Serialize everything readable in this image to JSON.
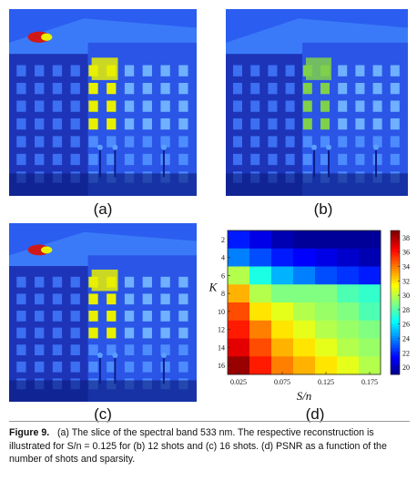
{
  "panels": {
    "a": {
      "label": "(a)"
    },
    "b": {
      "label": "(b)"
    },
    "c": {
      "label": "(c)"
    },
    "d": {
      "label": "(d)"
    }
  },
  "caption": {
    "figure": "Figure 9.",
    "text": "(a) The slice of the spectral band 533 nm. The respective reconstruction is illustrated for S/n = 0.125 for (b) 12 shots and (c) 16 shots. (d) PSNR as a function of the number of shots and sparsity."
  },
  "colors": {
    "image_bg": "#1a3fd8",
    "dark_blue": "#0a1a7a",
    "cyan": "#3fb6ff",
    "yellow": "#e8f000",
    "red": "#d01818"
  },
  "chart_data": {
    "type": "heatmap",
    "title": "",
    "xlabel": "S/n",
    "ylabel": "K",
    "x_tick_labels": [
      "0.025",
      "0.075",
      "0.125",
      "0.175"
    ],
    "y_tick_labels": [
      "2",
      "4",
      "6",
      "8",
      "10",
      "12",
      "14",
      "16"
    ],
    "x": [
      0.025,
      0.05,
      0.075,
      0.1,
      0.125,
      0.15,
      0.175
    ],
    "y": [
      2,
      4,
      6,
      8,
      10,
      12,
      14,
      16
    ],
    "colorbar_ticks": [
      20,
      22,
      24,
      26,
      28,
      30,
      32,
      34,
      36,
      38
    ],
    "colorbar_range": [
      19,
      39
    ],
    "values": [
      [
        22,
        21,
        20,
        19.5,
        19.5,
        19.5,
        19.5
      ],
      [
        24,
        23,
        22,
        21.5,
        21,
        20.5,
        20
      ],
      [
        30,
        27,
        25,
        24,
        23,
        22.5,
        22
      ],
      [
        33,
        30,
        29,
        29,
        29,
        28,
        27.5
      ],
      [
        35,
        32,
        31,
        30,
        29.5,
        29,
        28
      ],
      [
        36,
        34,
        32,
        31,
        30,
        29.5,
        29
      ],
      [
        37,
        35,
        33,
        32,
        31,
        30,
        29.5
      ],
      [
        38.5,
        36,
        34,
        33,
        32,
        31,
        30
      ]
    ]
  }
}
